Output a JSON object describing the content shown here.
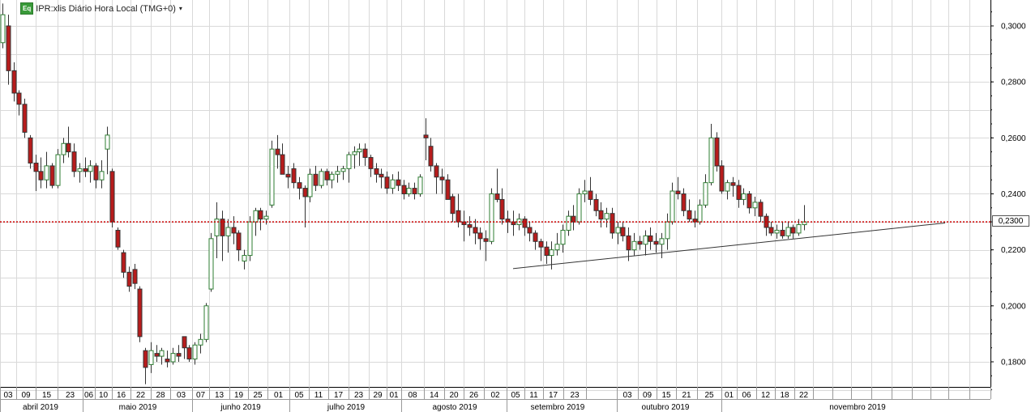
{
  "header": {
    "badge": "Eq",
    "title": "IPR:xlis Diário Hora Local (TMG+0)"
  },
  "current_price_label": "0,2300",
  "chart_data": {
    "type": "candlestick",
    "ylim": [
      0.17,
      0.31
    ],
    "y_ticks": [
      "0,1800",
      "0,2000",
      "0,2200",
      "0,2400",
      "0,2600",
      "0,2800",
      "0,3000"
    ],
    "y_tick_values": [
      0.18,
      0.2,
      0.22,
      0.24,
      0.26,
      0.28,
      0.3
    ],
    "day_ticks": [
      "03",
      "09",
      "15",
      "23",
      "06",
      "10",
      "16",
      "22",
      "28",
      "03",
      "07",
      "13",
      "19",
      "25",
      "01",
      "05",
      "11",
      "17",
      "23",
      "29",
      "01",
      "08",
      "14",
      "20",
      "26",
      "02",
      "05",
      "11",
      "17",
      "23",
      "03",
      "09",
      "15",
      "21",
      "25",
      "01",
      "06",
      "12",
      "18",
      "22"
    ],
    "month_labels": [
      "abril 2019",
      "maio 2019",
      "junho 2019",
      "julho 2019",
      "agosto 2019",
      "setembro 2019",
      "outubro 2019",
      "novembro 2019"
    ],
    "horizontal_line": {
      "value": 0.23,
      "style": "dotted",
      "color": "#cc0000"
    },
    "trendline": {
      "from": {
        "date": "2019-09-02",
        "value": 0.2133
      },
      "to": {
        "date": "2019-11-30",
        "value": 0.2296
      }
    },
    "colors": {
      "up": "#2e7d32",
      "down": "#b71c1c",
      "grid": "#d9d9d9",
      "axis": "#000000"
    },
    "candles": [
      [
        0.294,
        0.308,
        0.292,
        0.304
      ],
      [
        0.3,
        0.304,
        0.279,
        0.284
      ],
      [
        0.284,
        0.287,
        0.273,
        0.276
      ],
      [
        0.276,
        0.277,
        0.268,
        0.272
      ],
      [
        0.272,
        0.274,
        0.26,
        0.262
      ],
      [
        0.26,
        0.261,
        0.249,
        0.251
      ],
      [
        0.251,
        0.254,
        0.241,
        0.248
      ],
      [
        0.248,
        0.253,
        0.242,
        0.245
      ],
      [
        0.245,
        0.255,
        0.242,
        0.25
      ],
      [
        0.25,
        0.251,
        0.242,
        0.243
      ],
      [
        0.243,
        0.256,
        0.242,
        0.254
      ],
      [
        0.254,
        0.26,
        0.251,
        0.258
      ],
      [
        0.258,
        0.264,
        0.253,
        0.255
      ],
      [
        0.255,
        0.258,
        0.246,
        0.248
      ],
      [
        0.248,
        0.251,
        0.244,
        0.249
      ],
      [
        0.249,
        0.253,
        0.246,
        0.248
      ],
      [
        0.248,
        0.252,
        0.244,
        0.25
      ],
      [
        0.25,
        0.251,
        0.242,
        0.245
      ],
      [
        0.245,
        0.252,
        0.242,
        0.248
      ],
      [
        0.256,
        0.264,
        0.247,
        0.261
      ],
      [
        0.248,
        0.249,
        0.228,
        0.23
      ],
      [
        0.227,
        0.228,
        0.22,
        0.221
      ],
      [
        0.219,
        0.22,
        0.21,
        0.212
      ],
      [
        0.212,
        0.214,
        0.205,
        0.207
      ],
      [
        0.213,
        0.215,
        0.206,
        0.208
      ],
      [
        0.206,
        0.207,
        0.187,
        0.189
      ],
      [
        0.184,
        0.185,
        0.172,
        0.178
      ],
      [
        0.179,
        0.187,
        0.176,
        0.184
      ],
      [
        0.183,
        0.186,
        0.18,
        0.182
      ],
      [
        0.182,
        0.185,
        0.179,
        0.184
      ],
      [
        0.181,
        0.184,
        0.178,
        0.18
      ],
      [
        0.18,
        0.185,
        0.179,
        0.183
      ],
      [
        0.183,
        0.186,
        0.18,
        0.182
      ],
      [
        0.189,
        0.189,
        0.181,
        0.185
      ],
      [
        0.185,
        0.186,
        0.18,
        0.181
      ],
      [
        0.181,
        0.187,
        0.179,
        0.186
      ],
      [
        0.186,
        0.19,
        0.183,
        0.188
      ],
      [
        0.188,
        0.201,
        0.187,
        0.2
      ],
      [
        0.206,
        0.226,
        0.205,
        0.224
      ],
      [
        0.225,
        0.237,
        0.217,
        0.231
      ],
      [
        0.231,
        0.234,
        0.216,
        0.225
      ],
      [
        0.225,
        0.231,
        0.219,
        0.228
      ],
      [
        0.228,
        0.232,
        0.222,
        0.226
      ],
      [
        0.226,
        0.227,
        0.216,
        0.22
      ],
      [
        0.216,
        0.22,
        0.213,
        0.218
      ],
      [
        0.218,
        0.232,
        0.216,
        0.23
      ],
      [
        0.23,
        0.235,
        0.225,
        0.234
      ],
      [
        0.234,
        0.235,
        0.227,
        0.231
      ],
      [
        0.231,
        0.234,
        0.229,
        0.232
      ],
      [
        0.236,
        0.259,
        0.235,
        0.256
      ],
      [
        0.256,
        0.261,
        0.249,
        0.254
      ],
      [
        0.254,
        0.258,
        0.247,
        0.247
      ],
      [
        0.247,
        0.25,
        0.242,
        0.246
      ],
      [
        0.249,
        0.251,
        0.242,
        0.244
      ],
      [
        0.244,
        0.246,
        0.238,
        0.242
      ],
      [
        0.242,
        0.243,
        0.228,
        0.239
      ],
      [
        0.239,
        0.249,
        0.237,
        0.247
      ],
      [
        0.247,
        0.25,
        0.241,
        0.243
      ],
      [
        0.243,
        0.249,
        0.242,
        0.248
      ],
      [
        0.248,
        0.249,
        0.243,
        0.245
      ],
      [
        0.245,
        0.248,
        0.242,
        0.247
      ],
      [
        0.247,
        0.25,
        0.244,
        0.248
      ],
      [
        0.248,
        0.25,
        0.245,
        0.249
      ],
      [
        0.249,
        0.255,
        0.244,
        0.254
      ],
      [
        0.254,
        0.257,
        0.249,
        0.255
      ],
      [
        0.255,
        0.258,
        0.25,
        0.256
      ],
      [
        0.256,
        0.258,
        0.25,
        0.253
      ],
      [
        0.253,
        0.254,
        0.246,
        0.249
      ],
      [
        0.249,
        0.251,
        0.244,
        0.247
      ],
      [
        0.247,
        0.249,
        0.242,
        0.246
      ],
      [
        0.246,
        0.248,
        0.24,
        0.242
      ],
      [
        0.242,
        0.247,
        0.24,
        0.245
      ],
      [
        0.245,
        0.248,
        0.241,
        0.243
      ],
      [
        0.243,
        0.245,
        0.238,
        0.24
      ],
      [
        0.24,
        0.244,
        0.239,
        0.242
      ],
      [
        0.242,
        0.244,
        0.238,
        0.24
      ],
      [
        0.24,
        0.247,
        0.239,
        0.246
      ],
      [
        0.261,
        0.267,
        0.252,
        0.26
      ],
      [
        0.257,
        0.26,
        0.248,
        0.25
      ],
      [
        0.25,
        0.251,
        0.24,
        0.246
      ],
      [
        0.246,
        0.249,
        0.24,
        0.245
      ],
      [
        0.245,
        0.247,
        0.238,
        0.238
      ],
      [
        0.239,
        0.24,
        0.23,
        0.233
      ],
      [
        0.234,
        0.24,
        0.228,
        0.23
      ],
      [
        0.23,
        0.234,
        0.223,
        0.229
      ],
      [
        0.229,
        0.232,
        0.225,
        0.228
      ],
      [
        0.228,
        0.231,
        0.222,
        0.226
      ],
      [
        0.226,
        0.228,
        0.22,
        0.224
      ],
      [
        0.224,
        0.227,
        0.216,
        0.223
      ],
      [
        0.223,
        0.242,
        0.222,
        0.24
      ],
      [
        0.24,
        0.249,
        0.237,
        0.238
      ],
      [
        0.238,
        0.242,
        0.229,
        0.231
      ],
      [
        0.231,
        0.234,
        0.226,
        0.23
      ],
      [
        0.23,
        0.234,
        0.225,
        0.229
      ],
      [
        0.229,
        0.233,
        0.227,
        0.231
      ],
      [
        0.231,
        0.232,
        0.225,
        0.228
      ],
      [
        0.228,
        0.23,
        0.223,
        0.226
      ],
      [
        0.226,
        0.227,
        0.22,
        0.223
      ],
      [
        0.223,
        0.224,
        0.216,
        0.221
      ],
      [
        0.221,
        0.223,
        0.215,
        0.218
      ],
      [
        0.218,
        0.223,
        0.213,
        0.22
      ],
      [
        0.22,
        0.226,
        0.218,
        0.222
      ],
      [
        0.222,
        0.229,
        0.219,
        0.227
      ],
      [
        0.227,
        0.234,
        0.225,
        0.232
      ],
      [
        0.232,
        0.236,
        0.227,
        0.23
      ],
      [
        0.23,
        0.242,
        0.229,
        0.24
      ],
      [
        0.24,
        0.245,
        0.237,
        0.241
      ],
      [
        0.241,
        0.246,
        0.236,
        0.238
      ],
      [
        0.238,
        0.24,
        0.232,
        0.234
      ],
      [
        0.234,
        0.237,
        0.228,
        0.231
      ],
      [
        0.231,
        0.235,
        0.228,
        0.233
      ],
      [
        0.233,
        0.235,
        0.224,
        0.226
      ],
      [
        0.226,
        0.23,
        0.222,
        0.228
      ],
      [
        0.228,
        0.23,
        0.223,
        0.225
      ],
      [
        0.225,
        0.228,
        0.216,
        0.22
      ],
      [
        0.22,
        0.226,
        0.218,
        0.223
      ],
      [
        0.223,
        0.225,
        0.22,
        0.222
      ],
      [
        0.222,
        0.227,
        0.218,
        0.225
      ],
      [
        0.225,
        0.228,
        0.22,
        0.223
      ],
      [
        0.223,
        0.226,
        0.219,
        0.222
      ],
      [
        0.222,
        0.226,
        0.217,
        0.224
      ],
      [
        0.224,
        0.233,
        0.22,
        0.23
      ],
      [
        0.23,
        0.244,
        0.229,
        0.241
      ],
      [
        0.241,
        0.246,
        0.238,
        0.24
      ],
      [
        0.24,
        0.242,
        0.232,
        0.234
      ],
      [
        0.234,
        0.238,
        0.23,
        0.231
      ],
      [
        0.231,
        0.234,
        0.228,
        0.23
      ],
      [
        0.23,
        0.238,
        0.229,
        0.236
      ],
      [
        0.236,
        0.247,
        0.235,
        0.244
      ],
      [
        0.244,
        0.265,
        0.243,
        0.26
      ],
      [
        0.26,
        0.262,
        0.248,
        0.25
      ],
      [
        0.25,
        0.252,
        0.24,
        0.241
      ],
      [
        0.241,
        0.245,
        0.238,
        0.244
      ],
      [
        0.244,
        0.246,
        0.239,
        0.243
      ],
      [
        0.243,
        0.245,
        0.235,
        0.238
      ],
      [
        0.238,
        0.242,
        0.236,
        0.24
      ],
      [
        0.24,
        0.241,
        0.233,
        0.235
      ],
      [
        0.235,
        0.239,
        0.232,
        0.237
      ],
      [
        0.237,
        0.238,
        0.23,
        0.232
      ],
      [
        0.232,
        0.233,
        0.225,
        0.228
      ],
      [
        0.228,
        0.23,
        0.225,
        0.226
      ],
      [
        0.226,
        0.229,
        0.224,
        0.227
      ],
      [
        0.227,
        0.23,
        0.224,
        0.225
      ],
      [
        0.225,
        0.23,
        0.224,
        0.228
      ],
      [
        0.228,
        0.229,
        0.224,
        0.226
      ],
      [
        0.226,
        0.231,
        0.225,
        0.229
      ],
      [
        0.229,
        0.236,
        0.227,
        0.23
      ]
    ]
  }
}
